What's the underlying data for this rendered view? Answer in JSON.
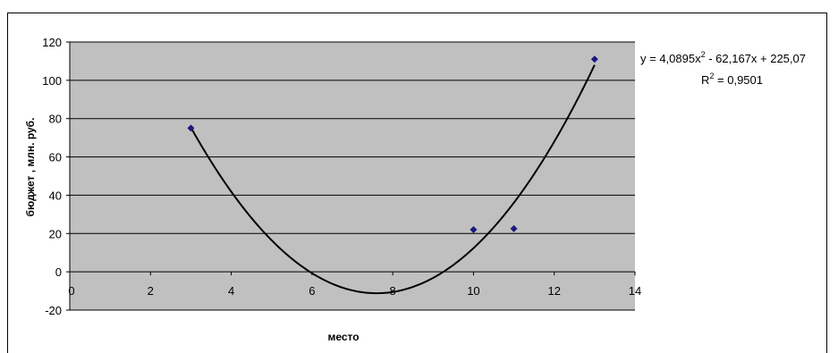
{
  "chart_data": {
    "type": "scatter",
    "xlabel": "место",
    "ylabel": "бюджет , млн. руб.",
    "xlim": [
      0,
      14
    ],
    "ylim": [
      -20,
      120
    ],
    "x_ticks": [
      0,
      2,
      4,
      6,
      8,
      10,
      12,
      14
    ],
    "y_ticks": [
      -20,
      0,
      20,
      40,
      60,
      80,
      100,
      120
    ],
    "x_tick_labels": [
      "0",
      "2",
      "4",
      "6",
      "8",
      "10",
      "12",
      "14"
    ],
    "y_tick_labels": [
      "-20",
      "0",
      "20",
      "40",
      "60",
      "80",
      "100",
      "120"
    ],
    "grid": "horizontal",
    "points": [
      {
        "x": 3,
        "y": 75
      },
      {
        "x": 10,
        "y": 22
      },
      {
        "x": 11,
        "y": 22.5
      },
      {
        "x": 13,
        "y": 111
      }
    ],
    "trendline": {
      "type": "polynomial",
      "coefficients": [
        4.0895,
        -62.167,
        225.07
      ],
      "x_range": [
        3,
        13
      ],
      "equation_prefix": "y = 4,0895x",
      "equation_exponent": "2",
      "equation_suffix": " - 62,167x + 225,07",
      "r2_prefix": "R",
      "r2_exponent": "2",
      "r2_suffix": " = 0,9501"
    },
    "colors": {
      "plot_background": "#c0c0c0",
      "marker": "#1a1a7e",
      "trendline": "#000000",
      "gridline": "#000000"
    }
  }
}
